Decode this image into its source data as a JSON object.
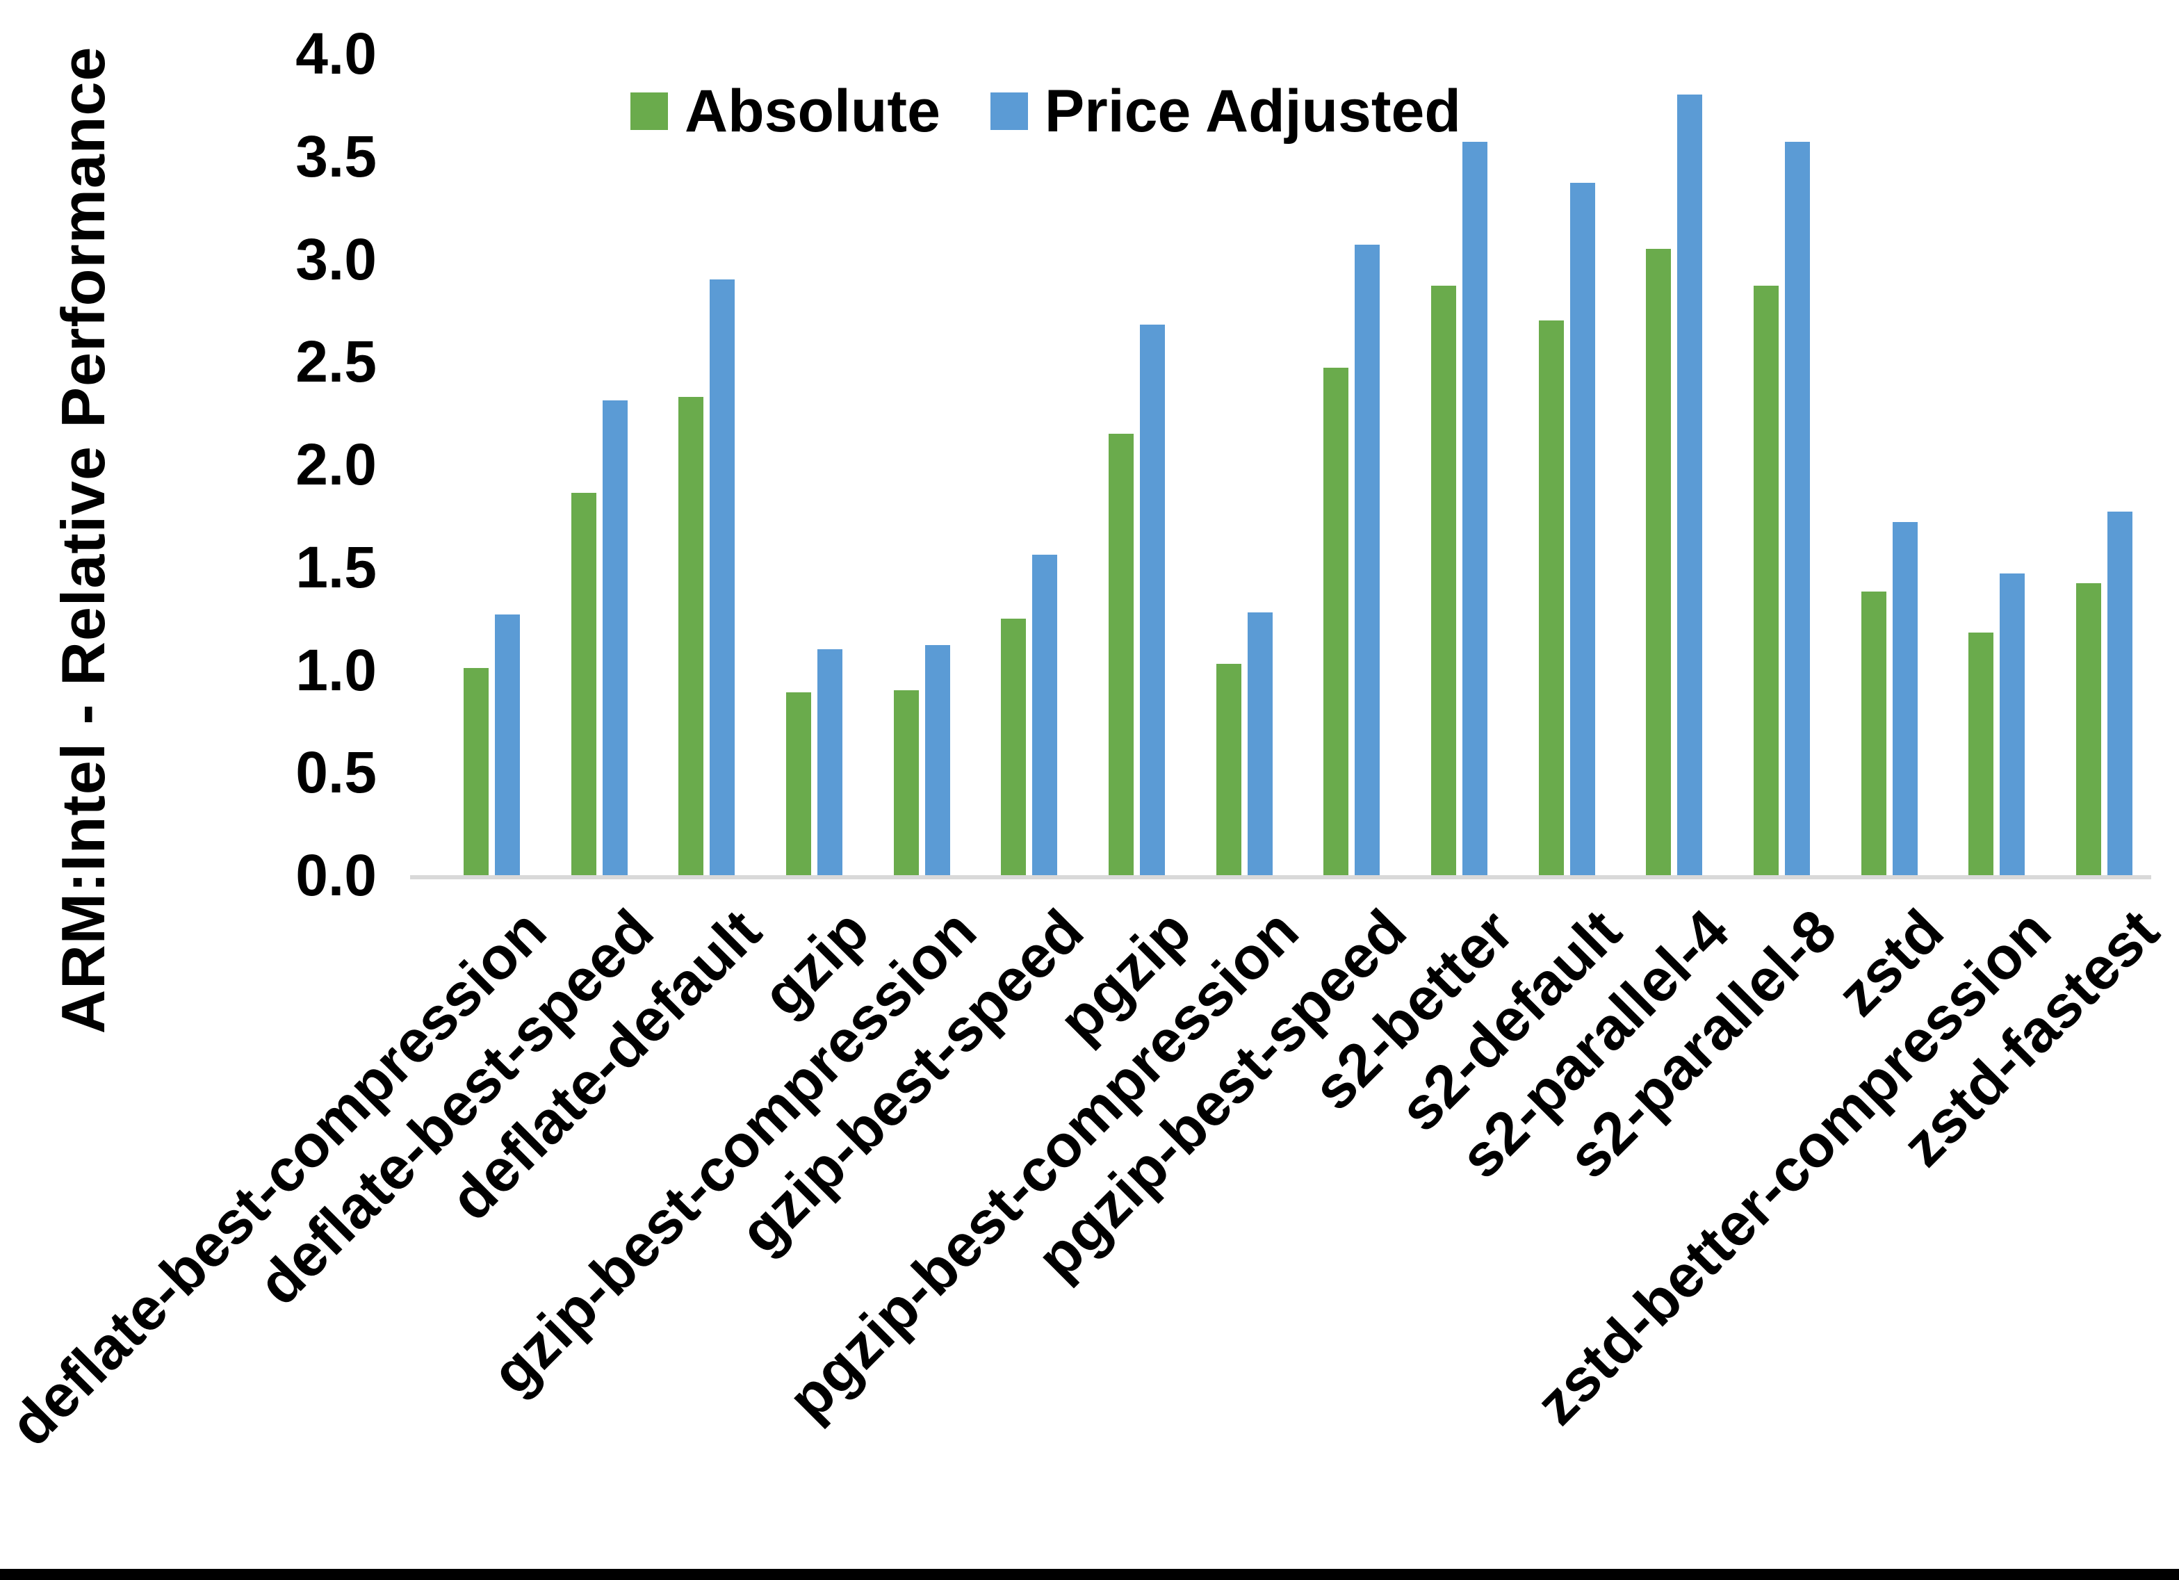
{
  "page": {
    "background": "#ffffff",
    "bottom_border_color": "#000000"
  },
  "y_axis": {
    "title": "ARM:Intel - Relative Performance",
    "tick_labels": [
      "4.0",
      "3.5",
      "3.0",
      "2.5",
      "2.0",
      "1.5",
      "1.0",
      "0.5",
      "0.0"
    ]
  },
  "legend": {
    "items": [
      {
        "label": "Absolute",
        "color": "#6aab4c"
      },
      {
        "label": "Price Adjusted",
        "color": "#5b9bd5"
      }
    ]
  },
  "chart_data": {
    "type": "bar",
    "title": "",
    "xlabel": "",
    "ylabel": "ARM:Intel - Relative Performance",
    "ylim": [
      0,
      4
    ],
    "ytick_step": 0.5,
    "grid": false,
    "legend_position": "top-center",
    "axis_line_color": "#d9d9d9",
    "categories": [
      "deflate-best-compression",
      "deflate-best-speed",
      "deflate-default",
      "gzip",
      "gzip-best-compression",
      "gzip-best-speed",
      "pgzip",
      "pgzip-best-compression",
      "pgzip-best-speed",
      "s2-better",
      "s2-default",
      "s2-parallel-4",
      "s2-parallel-8",
      "zstd",
      "zstd-better-compression",
      "zstd-fastest"
    ],
    "series": [
      {
        "name": "Absolute",
        "color": "#6aab4c",
        "values": [
          1.01,
          1.86,
          2.33,
          0.89,
          0.9,
          1.25,
          2.15,
          1.03,
          2.47,
          2.87,
          2.7,
          3.05,
          2.87,
          1.38,
          1.18,
          1.42
        ]
      },
      {
        "name": "Price Adjusted",
        "color": "#5b9bd5",
        "values": [
          1.27,
          2.31,
          2.9,
          1.1,
          1.12,
          1.56,
          2.68,
          1.28,
          3.07,
          3.57,
          3.37,
          3.8,
          3.57,
          1.72,
          1.47,
          1.77
        ]
      }
    ]
  }
}
